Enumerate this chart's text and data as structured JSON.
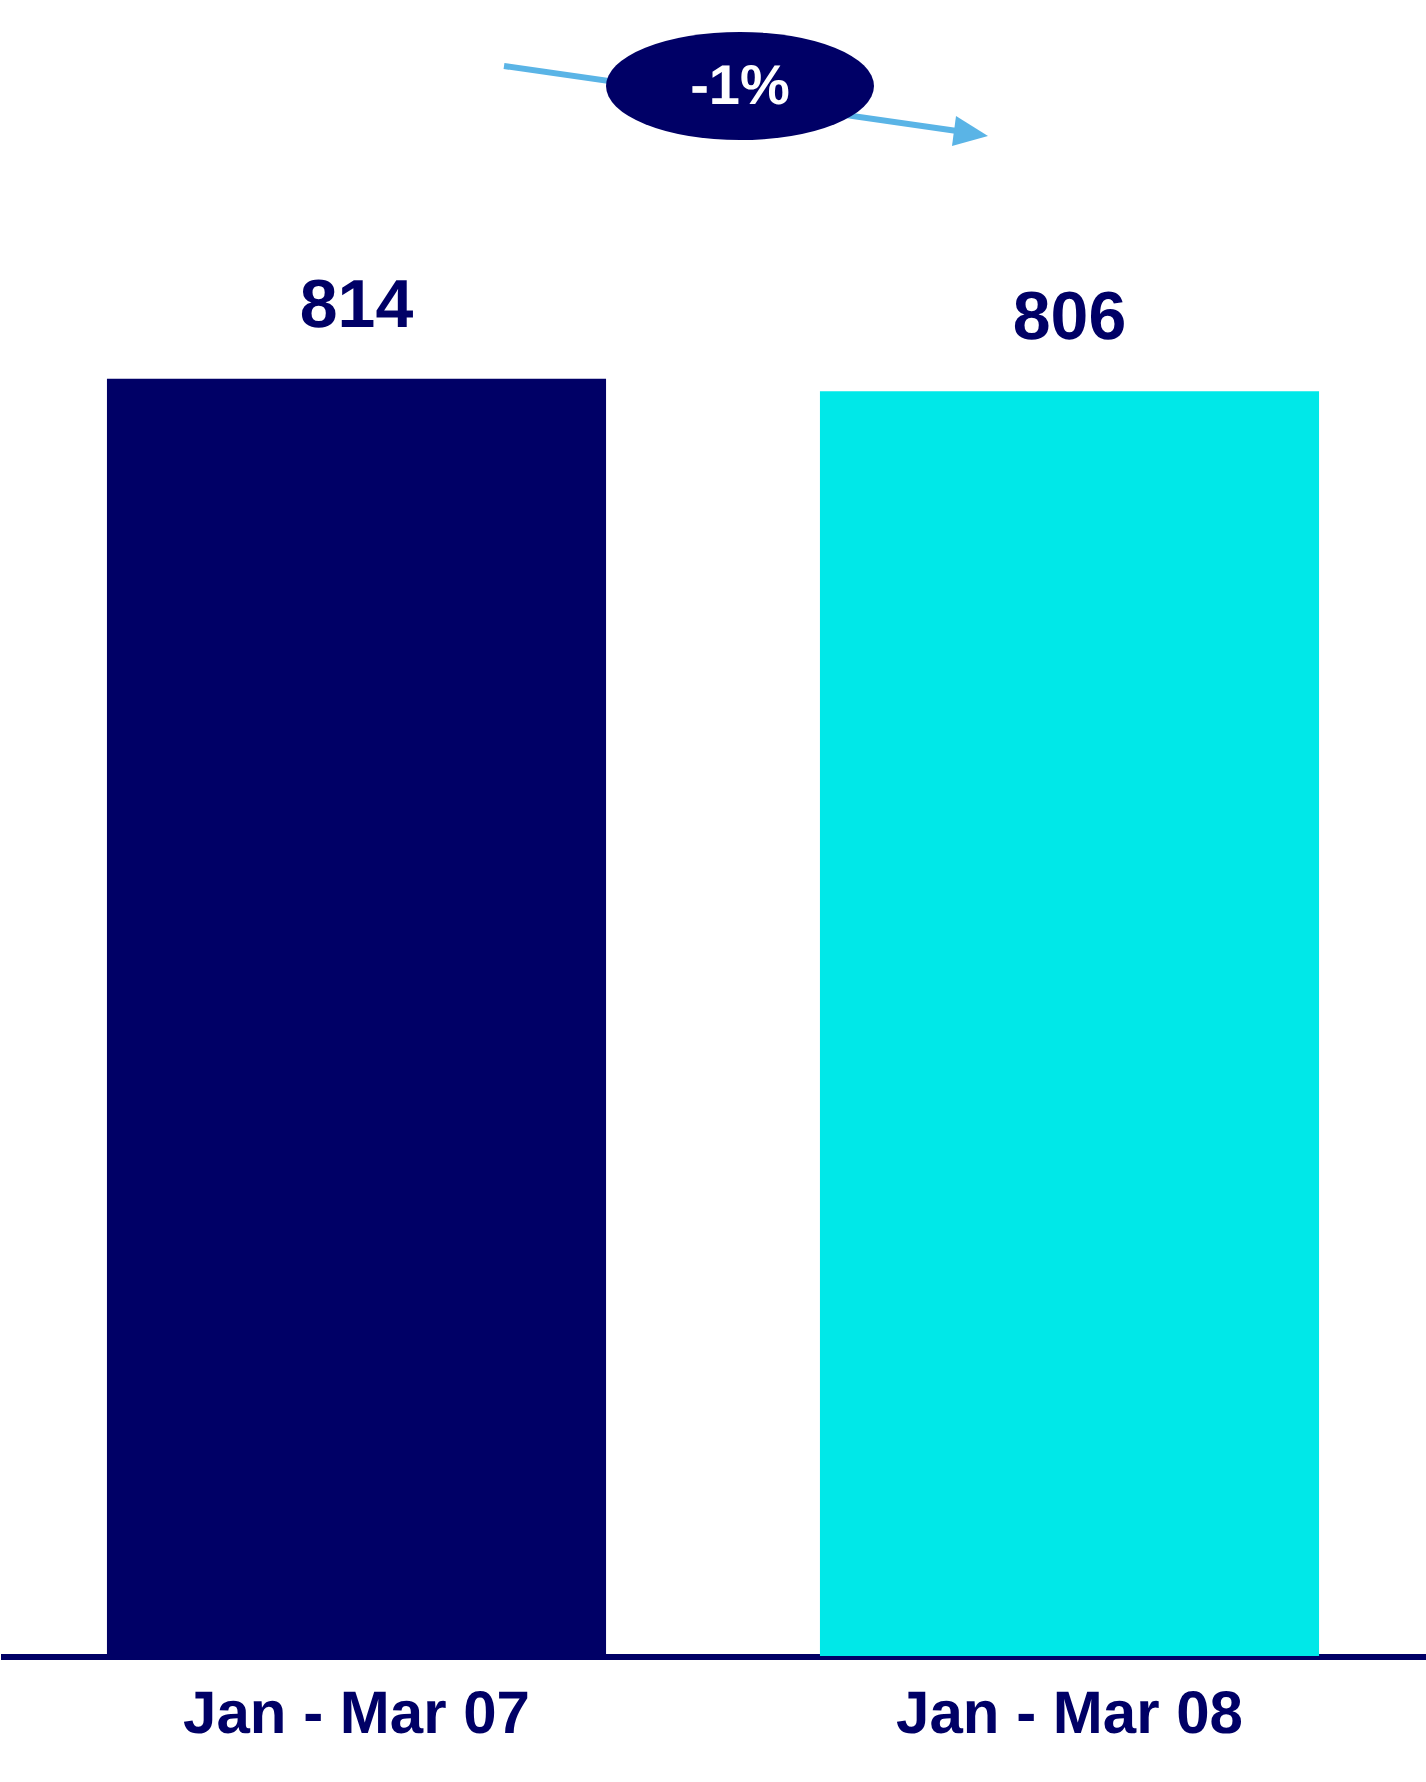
{
  "chart_data": {
    "type": "bar",
    "categories": [
      "Jan - Mar 07",
      "Jan - Mar 08"
    ],
    "values": [
      814,
      806
    ],
    "colors": [
      "#000066",
      "#00e8e8"
    ],
    "data_labels": true,
    "annotations": [
      "-1%"
    ]
  }
}
